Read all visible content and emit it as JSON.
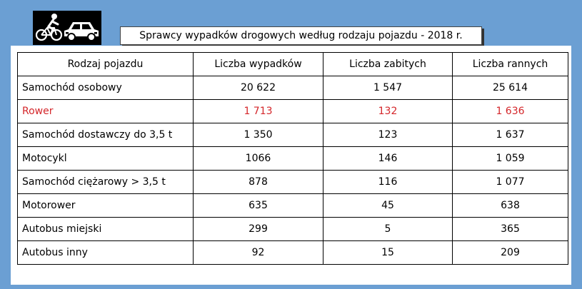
{
  "header": {
    "icon": "cyclist-and-car-icon",
    "title": "Sprawcy wypadków drogowych według rodzaju pojazdu - 2018 r."
  },
  "chart_data": {
    "type": "table",
    "title": "Sprawcy wypadków drogowych według rodzaju pojazdu - 2018 r.",
    "columns": [
      "Rodzaj pojazdu",
      "Liczba wypadków",
      "Liczba zabitych",
      "Liczba rannych"
    ],
    "rows": [
      [
        "Samochód osobowy",
        "20 622",
        "1 547",
        "25 614"
      ],
      [
        "Rower",
        "1 713",
        "132",
        "1 636"
      ],
      [
        "Samochód dostawczy do 3,5 t",
        "1 350",
        "123",
        "1 637"
      ],
      [
        "Motocykl",
        "1066",
        "146",
        "1 059"
      ],
      [
        "Samochód ciężarowy > 3,5 t",
        "878",
        "116",
        "1 077"
      ],
      [
        "Motorower",
        "635",
        "45",
        "638"
      ],
      [
        "Autobus miejski",
        "299",
        "5",
        "365"
      ],
      [
        "Autobus inny",
        "92",
        "15",
        "209"
      ]
    ],
    "highlight_row": 1,
    "highlight_color": "#d4262a"
  }
}
